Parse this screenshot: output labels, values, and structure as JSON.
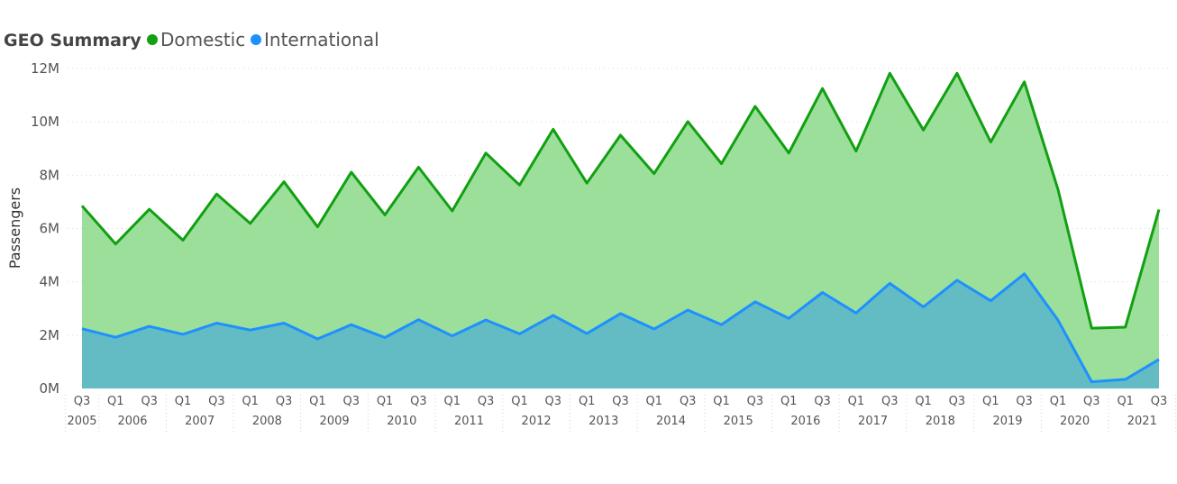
{
  "chart_data": {
    "type": "area",
    "title": "GEO Summary",
    "ylabel": "Passengers",
    "xlabel": "",
    "ylim": [
      0,
      12000000
    ],
    "yticks": [
      {
        "value": 0,
        "label": "0M"
      },
      {
        "value": 2000000,
        "label": "2M"
      },
      {
        "value": 4000000,
        "label": "4M"
      },
      {
        "value": 6000000,
        "label": "6M"
      },
      {
        "value": 8000000,
        "label": "8M"
      },
      {
        "value": 10000000,
        "label": "10M"
      },
      {
        "value": 12000000,
        "label": "12M"
      }
    ],
    "grid": true,
    "legend_position": "top-left",
    "x": [
      "Q3",
      "Q1",
      "Q3",
      "Q1",
      "Q3",
      "Q1",
      "Q3",
      "Q1",
      "Q3",
      "Q1",
      "Q3",
      "Q1",
      "Q3",
      "Q1",
      "Q3",
      "Q1",
      "Q3",
      "Q1",
      "Q3",
      "Q1",
      "Q3",
      "Q1",
      "Q3",
      "Q1",
      "Q3",
      "Q1",
      "Q3",
      "Q1",
      "Q3",
      "Q1",
      "Q3",
      "Q1",
      "Q3"
    ],
    "years": [
      {
        "label": "2005",
        "start": 0,
        "end": 0
      },
      {
        "label": "2006",
        "start": 1,
        "end": 2
      },
      {
        "label": "2007",
        "start": 3,
        "end": 4
      },
      {
        "label": "2008",
        "start": 5,
        "end": 6
      },
      {
        "label": "2009",
        "start": 7,
        "end": 8
      },
      {
        "label": "2010",
        "start": 9,
        "end": 10
      },
      {
        "label": "2011",
        "start": 11,
        "end": 12
      },
      {
        "label": "2012",
        "start": 13,
        "end": 14
      },
      {
        "label": "2013",
        "start": 15,
        "end": 16
      },
      {
        "label": "2014",
        "start": 17,
        "end": 18
      },
      {
        "label": "2015",
        "start": 19,
        "end": 20
      },
      {
        "label": "2016",
        "start": 21,
        "end": 22
      },
      {
        "label": "2017",
        "start": 23,
        "end": 24
      },
      {
        "label": "2018",
        "start": 25,
        "end": 26
      },
      {
        "label": "2019",
        "start": 27,
        "end": 28
      },
      {
        "label": "2020",
        "start": 29,
        "end": 30
      },
      {
        "label": "2021",
        "start": 31,
        "end": 32
      }
    ],
    "series": [
      {
        "name": "Domestic",
        "color": "#11a011",
        "fill": "#9cdf9b",
        "values": [
          6850000,
          5420000,
          6720000,
          5560000,
          7290000,
          6190000,
          7750000,
          6060000,
          8110000,
          6510000,
          8300000,
          6660000,
          8830000,
          7630000,
          9720000,
          7700000,
          9500000,
          8060000,
          10010000,
          8430000,
          10580000,
          8830000,
          11250000,
          8900000,
          11820000,
          9690000,
          11820000,
          9240000,
          11500000,
          7460000,
          2260000,
          2300000,
          6710000
        ]
      },
      {
        "name": "International",
        "color": "#1e90ff",
        "fill": "#63bcc3",
        "values": [
          2240000,
          1920000,
          2330000,
          2030000,
          2450000,
          2190000,
          2450000,
          1860000,
          2390000,
          1910000,
          2580000,
          1970000,
          2570000,
          2050000,
          2740000,
          2060000,
          2810000,
          2230000,
          2940000,
          2390000,
          3250000,
          2630000,
          3600000,
          2830000,
          3940000,
          3060000,
          4060000,
          3290000,
          4300000,
          2560000,
          250000,
          340000,
          1090000
        ]
      }
    ]
  }
}
